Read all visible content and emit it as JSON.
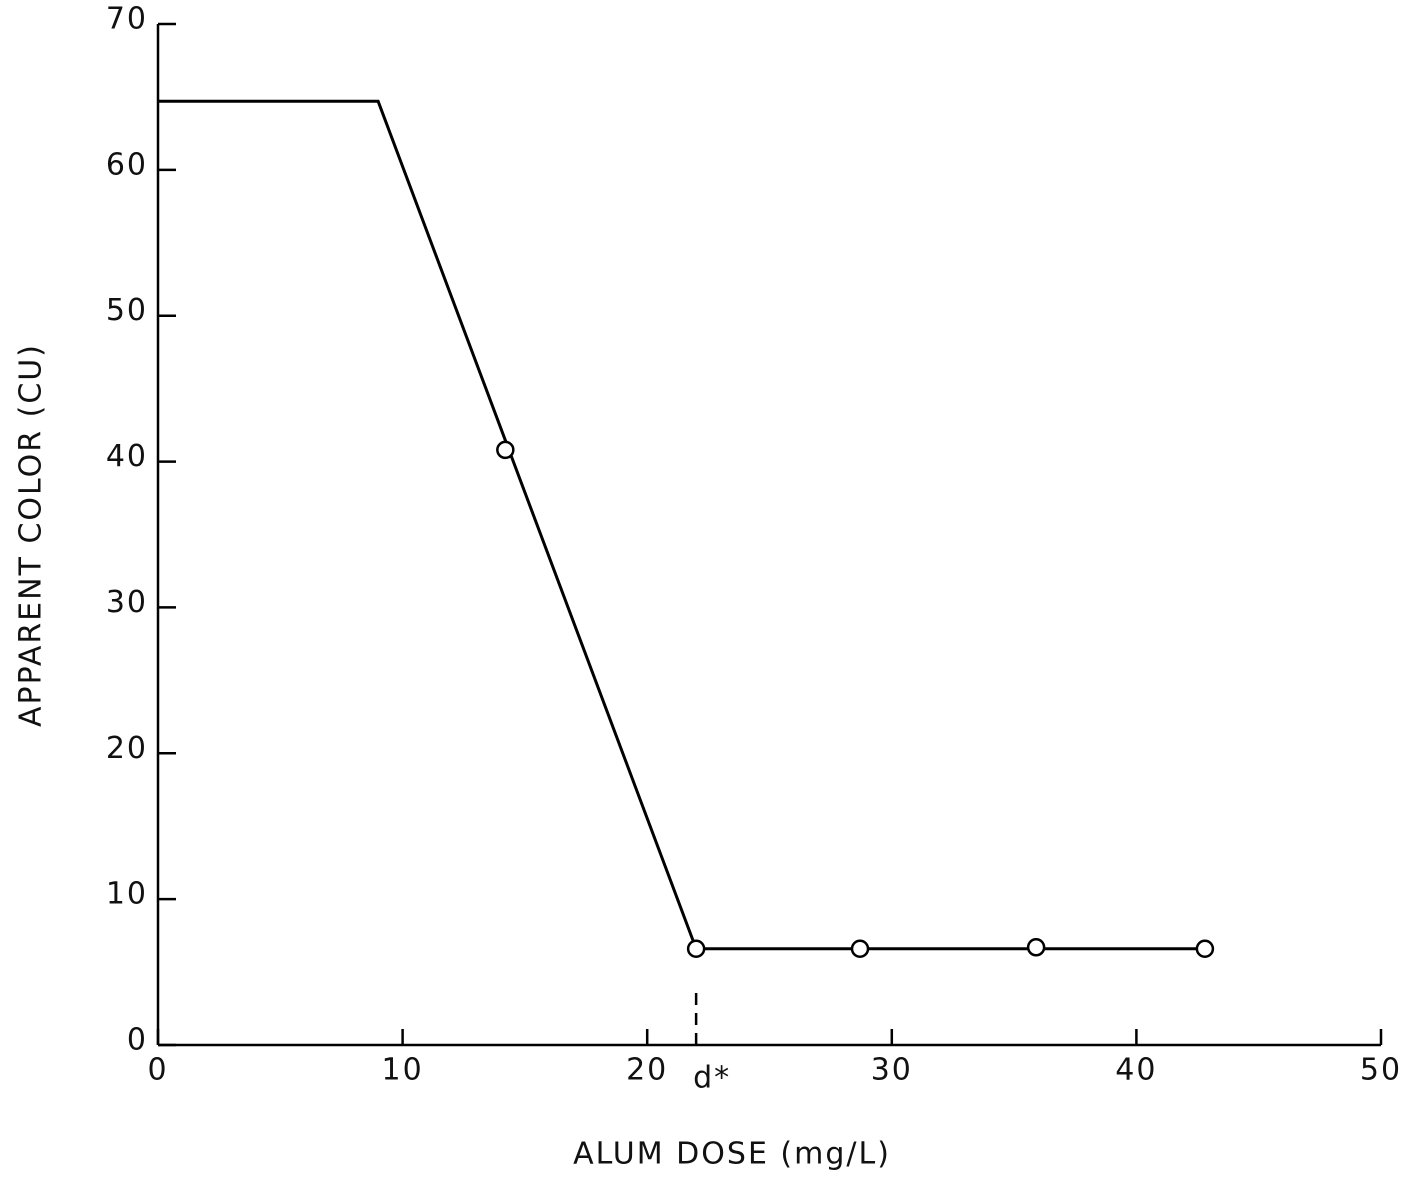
{
  "chart_data": {
    "type": "line",
    "x_label": "ALUM DOSE (mg/L)",
    "y_label": "APPARENT COLOR (CU)",
    "xlim": [
      0,
      50
    ],
    "xticks": [
      0,
      10,
      20,
      30,
      40,
      50
    ],
    "ylim": [
      0,
      70
    ],
    "yticks": [
      0,
      10,
      20,
      30,
      40,
      50,
      60,
      70
    ],
    "series": [
      {
        "color": "#000000",
        "marker": false,
        "x": [
          0,
          9,
          22,
          42.8
        ],
        "values": [
          64.7,
          64.7,
          6.6,
          6.6
        ]
      },
      {
        "color": "#000000",
        "marker": true,
        "x": [
          14.2,
          22,
          28.7,
          35.9,
          42.8
        ],
        "values": [
          40.8,
          6.6,
          6.6,
          6.7,
          6.6
        ]
      }
    ],
    "annotations": [
      {
        "text": "d*",
        "x": 22
      }
    ]
  }
}
